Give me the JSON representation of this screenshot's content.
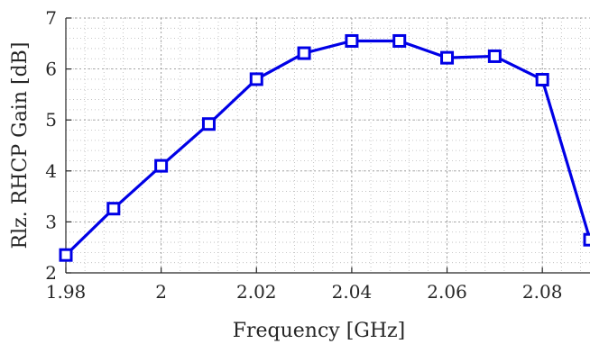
{
  "chart_data": {
    "type": "line",
    "title": "",
    "xlabel": "Frequency [GHz]",
    "ylabel": "Rlz. RHCP Gain [dB]",
    "xlim": [
      1.98,
      2.09
    ],
    "ylim": [
      2,
      7
    ],
    "x_ticks": [
      1.98,
      2,
      2.02,
      2.04,
      2.06,
      2.08
    ],
    "x_tick_labels": [
      "1.98",
      "2",
      "2.02",
      "2.04",
      "2.06",
      "2.08"
    ],
    "y_ticks": [
      2,
      3,
      4,
      5,
      6,
      7
    ],
    "y_tick_labels": [
      "2",
      "3",
      "4",
      "5",
      "6",
      "7"
    ],
    "grid": true,
    "minor_grid": true,
    "legend": "none",
    "series": [
      {
        "color": "#0000e6",
        "marker": "square",
        "x": [
          1.98,
          1.99,
          2.0,
          2.01,
          2.02,
          2.03,
          2.04,
          2.05,
          2.06,
          2.07,
          2.08,
          2.09
        ],
        "values": [
          2.35,
          3.26,
          4.1,
          4.92,
          5.8,
          6.31,
          6.55,
          6.55,
          6.22,
          6.25,
          5.79,
          2.65
        ]
      }
    ]
  }
}
